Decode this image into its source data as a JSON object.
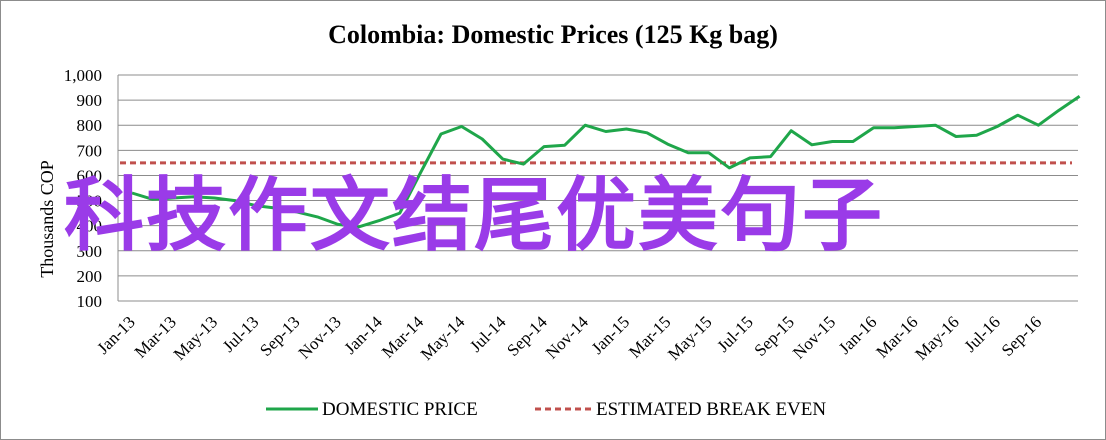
{
  "chart_data": {
    "type": "line",
    "title": "Colombia:  Domestic Prices (125 Kg bag)",
    "ylabel": "Thousands COP",
    "xlabel": "",
    "ylim": [
      100,
      1000
    ],
    "yticks": [
      "1,000",
      "900",
      "800",
      "700",
      "600",
      "500",
      "400",
      "300",
      "200",
      "100"
    ],
    "grid": true,
    "legend_position": "bottom",
    "x_tick_labels": [
      "Jan-13",
      "Mar-13",
      "May-13",
      "Jul-13",
      "Sep-13",
      "Nov-13",
      "Jan-14",
      "Mar-14",
      "May-14",
      "Jul-14",
      "Sep-14",
      "Nov-14",
      "Jan-15",
      "Mar-15",
      "May-15",
      "Jul-15",
      "Sep-15",
      "Nov-15",
      "Jan-16",
      "Mar-16",
      "May-16",
      "Jul-16",
      "Sep-16"
    ],
    "x": [
      "Jan-13",
      "Feb-13",
      "Mar-13",
      "Apr-13",
      "May-13",
      "Jun-13",
      "Jul-13",
      "Aug-13",
      "Sep-13",
      "Oct-13",
      "Nov-13",
      "Dec-13",
      "Jan-14",
      "Feb-14",
      "Mar-14",
      "Apr-14",
      "May-14",
      "Jun-14",
      "Jul-14",
      "Aug-14",
      "Sep-14",
      "Oct-14",
      "Nov-14",
      "Dec-14",
      "Jan-15",
      "Feb-15",
      "Mar-15",
      "Apr-15",
      "May-15",
      "Jun-15",
      "Jul-15",
      "Aug-15",
      "Sep-15",
      "Oct-15",
      "Nov-15",
      "Dec-15",
      "Jan-16",
      "Feb-16",
      "Mar-16",
      "Apr-16",
      "May-16",
      "Jun-16",
      "Jul-16",
      "Aug-16",
      "Sep-16",
      "Oct-16",
      "Nov-16"
    ],
    "series": [
      {
        "name": "DOMESTIC PRICE",
        "color": "#1fa64a",
        "style": "solid",
        "values": [
          530,
          505,
          510,
          515,
          510,
          500,
          480,
          470,
          455,
          435,
          405,
          395,
          420,
          450,
          610,
          765,
          795,
          745,
          665,
          645,
          715,
          720,
          800,
          775,
          785,
          770,
          725,
          690,
          690,
          630,
          670,
          675,
          778,
          722,
          735,
          735,
          790,
          790,
          795,
          800,
          755,
          760,
          795,
          840,
          800,
          860,
          915
        ]
      },
      {
        "name": "ESTIMATED BREAK EVEN",
        "color": "#c0504d",
        "style": "dashed",
        "values": [
          650,
          650,
          650,
          650,
          650,
          650,
          650,
          650,
          650,
          650,
          650,
          650,
          650,
          650,
          650,
          650,
          650,
          650,
          650,
          650,
          650,
          650,
          650,
          650,
          650,
          650,
          650,
          650,
          650,
          650,
          650,
          650,
          650,
          650,
          650,
          650,
          650,
          650,
          650,
          650,
          650,
          650,
          650,
          650,
          650,
          650,
          650
        ]
      }
    ]
  },
  "watermark_text": "科技作文结尾优美句子"
}
